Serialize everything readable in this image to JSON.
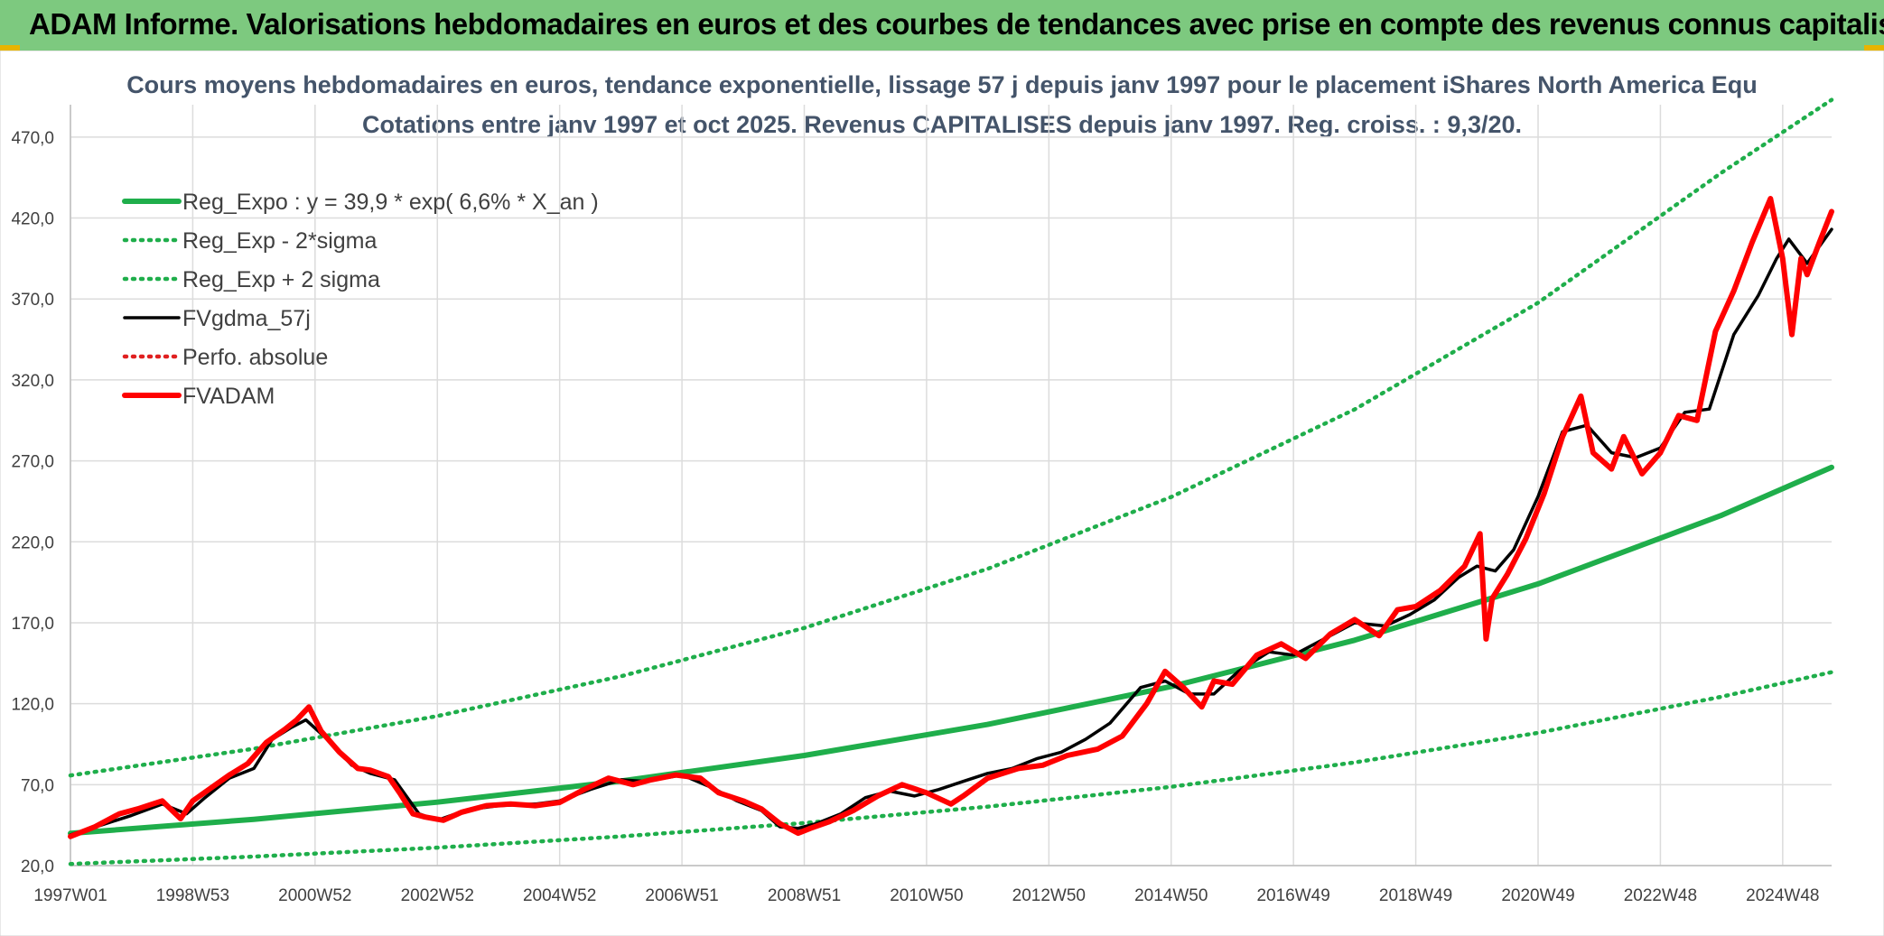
{
  "header": {
    "title": "ADAM Informe. Valorisations hebdomadaires en euros et des courbes de tendances avec prise en compte des revenus connus capitalisés"
  },
  "chart_data": {
    "type": "line",
    "title": "Cours moyens hebdomadaires en euros, tendance exponentielle, lissage 57 j depuis janv 1997 pour le placement iShares North America Equ",
    "subtitle": "Cotations entre janv 1997 et oct 2025. Revenus CAPITALISES depuis janv 1997. Reg. croiss. : 9,3/20.",
    "xlabel": "",
    "ylabel": "",
    "ylim": [
      20,
      490
    ],
    "xlim": [
      1997.0,
      2025.8
    ],
    "grid": true,
    "legend_placement": "top-left",
    "y_ticks": [
      "20,0",
      "70,0",
      "120,0",
      "170,0",
      "220,0",
      "270,0",
      "320,0",
      "370,0",
      "420,0",
      "470,0"
    ],
    "y_tick_values": [
      20,
      70,
      120,
      170,
      220,
      270,
      320,
      370,
      420,
      470
    ],
    "x_ticks": [
      "1997W01",
      "1998W53",
      "2000W52",
      "2002W52",
      "2004W52",
      "2006W51",
      "2008W51",
      "2010W50",
      "2012W50",
      "2014W50",
      "2016W49",
      "2018W49",
      "2020W49",
      "2022W48",
      "2024W48"
    ],
    "x_tick_values": [
      1997.0,
      1999.0,
      2001.0,
      2003.0,
      2005.0,
      2007.0,
      2009.0,
      2011.0,
      2013.0,
      2015.0,
      2017.0,
      2019.0,
      2021.0,
      2023.0,
      2025.0
    ],
    "series": [
      {
        "name": "Reg_Expo : y = 39,9 * exp( 6,6% *  X_an )",
        "color": "#1fae4b",
        "style": "solid-thick",
        "x": [
          1997,
          2000,
          2003,
          2006,
          2009,
          2012,
          2015,
          2018,
          2021,
          2024,
          2025.8
        ],
        "values": [
          39.9,
          48.6,
          59.2,
          72.2,
          88.0,
          107.2,
          130.6,
          159.2,
          194.0,
          236.4,
          266.0
        ]
      },
      {
        "name": "Reg_Exp - 2*sigma",
        "color": "#1fae4b",
        "style": "dotted",
        "x": [
          1997,
          2000,
          2003,
          2006,
          2009,
          2012,
          2015,
          2018,
          2021,
          2024,
          2025.8
        ],
        "values": [
          21.0,
          25.6,
          31.1,
          38.0,
          46.3,
          56.4,
          68.7,
          83.7,
          102.0,
          124.3,
          139.5
        ]
      },
      {
        "name": "Reg_Exp + 2 sigma",
        "color": "#1fae4b",
        "style": "dotted",
        "x": [
          1997,
          2000,
          2003,
          2006,
          2009,
          2012,
          2015,
          2018,
          2021,
          2024,
          2025.8
        ],
        "values": [
          75.7,
          92.2,
          112.4,
          136.9,
          166.8,
          203.3,
          247.7,
          301.8,
          367.7,
          448.0,
          493.0
        ]
      },
      {
        "name": "FVgdma_57j",
        "color": "#000000",
        "style": "solid",
        "x": [
          1997.0,
          1997.5,
          1998.0,
          1998.5,
          1998.9,
          1999.2,
          1999.6,
          2000.0,
          2000.3,
          2000.6,
          2000.85,
          2001.2,
          2001.6,
          2001.9,
          2002.3,
          2002.7,
          2003.0,
          2003.3,
          2003.6,
          2004.0,
          2004.6,
          2005.0,
          2005.5,
          2006.0,
          2006.4,
          2007.0,
          2007.5,
          2007.9,
          2008.3,
          2008.6,
          2008.9,
          2009.2,
          2009.6,
          2010.0,
          2010.4,
          2010.8,
          2011.2,
          2011.6,
          2012.0,
          2012.4,
          2012.8,
          2013.2,
          2013.6,
          2014.0,
          2014.5,
          2014.9,
          2015.3,
          2015.7,
          2016.1,
          2016.6,
          2017.0,
          2017.5,
          2018.0,
          2018.5,
          2018.9,
          2019.3,
          2019.7,
          2020.0,
          2020.3,
          2020.6,
          2021.0,
          2021.4,
          2021.8,
          2022.2,
          2022.6,
          2023.0,
          2023.4,
          2023.8,
          2024.2,
          2024.6,
          2024.9,
          2025.1,
          2025.4,
          2025.8
        ],
        "values": [
          39,
          45,
          51,
          58,
          52,
          62,
          74,
          80,
          98,
          105,
          110,
          98,
          82,
          77,
          73,
          52,
          48,
          52,
          55,
          57,
          58,
          60,
          67,
          73,
          72,
          76,
          68,
          60,
          54,
          44,
          43,
          46,
          52,
          62,
          66,
          63,
          67,
          72,
          77,
          80,
          86,
          90,
          98,
          108,
          130,
          134,
          126,
          126,
          140,
          152,
          150,
          160,
          170,
          168,
          175,
          184,
          198,
          205,
          202,
          215,
          248,
          288,
          292,
          275,
          272,
          278,
          300,
          302,
          348,
          372,
          395,
          407,
          392,
          413
        ]
      },
      {
        "name": "Perfo. absolue",
        "color": "#e02020",
        "style": "dotted",
        "x": [],
        "values": []
      },
      {
        "name": "FVADAM",
        "color": "#ff0000",
        "style": "solid-thick",
        "x": [
          1997.0,
          1997.4,
          1997.8,
          1998.1,
          1998.5,
          1998.8,
          1999.0,
          1999.3,
          1999.6,
          1999.9,
          2000.2,
          2000.5,
          2000.7,
          2000.9,
          2001.1,
          2001.4,
          2001.7,
          2001.9,
          2002.2,
          2002.4,
          2002.6,
          2002.8,
          2003.1,
          2003.4,
          2003.8,
          2004.2,
          2004.6,
          2005.0,
          2005.4,
          2005.8,
          2006.2,
          2006.5,
          2006.9,
          2007.3,
          2007.6,
          2008.0,
          2008.3,
          2008.6,
          2008.9,
          2009.1,
          2009.4,
          2009.8,
          2010.2,
          2010.6,
          2011.0,
          2011.4,
          2011.6,
          2012.0,
          2012.5,
          2012.9,
          2013.3,
          2013.8,
          2014.2,
          2014.6,
          2014.9,
          2015.2,
          2015.5,
          2015.7,
          2016.0,
          2016.4,
          2016.8,
          2017.2,
          2017.6,
          2018.0,
          2018.4,
          2018.7,
          2019.0,
          2019.4,
          2019.8,
          2020.05,
          2020.15,
          2020.25,
          2020.5,
          2020.8,
          2021.1,
          2021.4,
          2021.7,
          2021.9,
          2022.2,
          2022.4,
          2022.7,
          2023.0,
          2023.3,
          2023.6,
          2023.9,
          2024.2,
          2024.5,
          2024.8,
          2025.0,
          2025.15,
          2025.3,
          2025.4,
          2025.6,
          2025.8
        ],
        "values": [
          38,
          44,
          52,
          55,
          60,
          49,
          60,
          68,
          76,
          83,
          96,
          104,
          110,
          118,
          103,
          90,
          80,
          79,
          75,
          64,
          52,
          50,
          48,
          53,
          57,
          58,
          57,
          59,
          67,
          74,
          70,
          73,
          76,
          74,
          65,
          60,
          55,
          46,
          40,
          43,
          47,
          54,
          63,
          70,
          65,
          58,
          63,
          74,
          80,
          82,
          88,
          92,
          100,
          120,
          140,
          130,
          118,
          134,
          132,
          150,
          157,
          148,
          163,
          172,
          162,
          178,
          180,
          190,
          205,
          225,
          160,
          185,
          200,
          222,
          250,
          285,
          310,
          275,
          265,
          285,
          262,
          275,
          298,
          295,
          350,
          375,
          405,
          432,
          395,
          348,
          395,
          385,
          405,
          424
        ]
      }
    ]
  }
}
